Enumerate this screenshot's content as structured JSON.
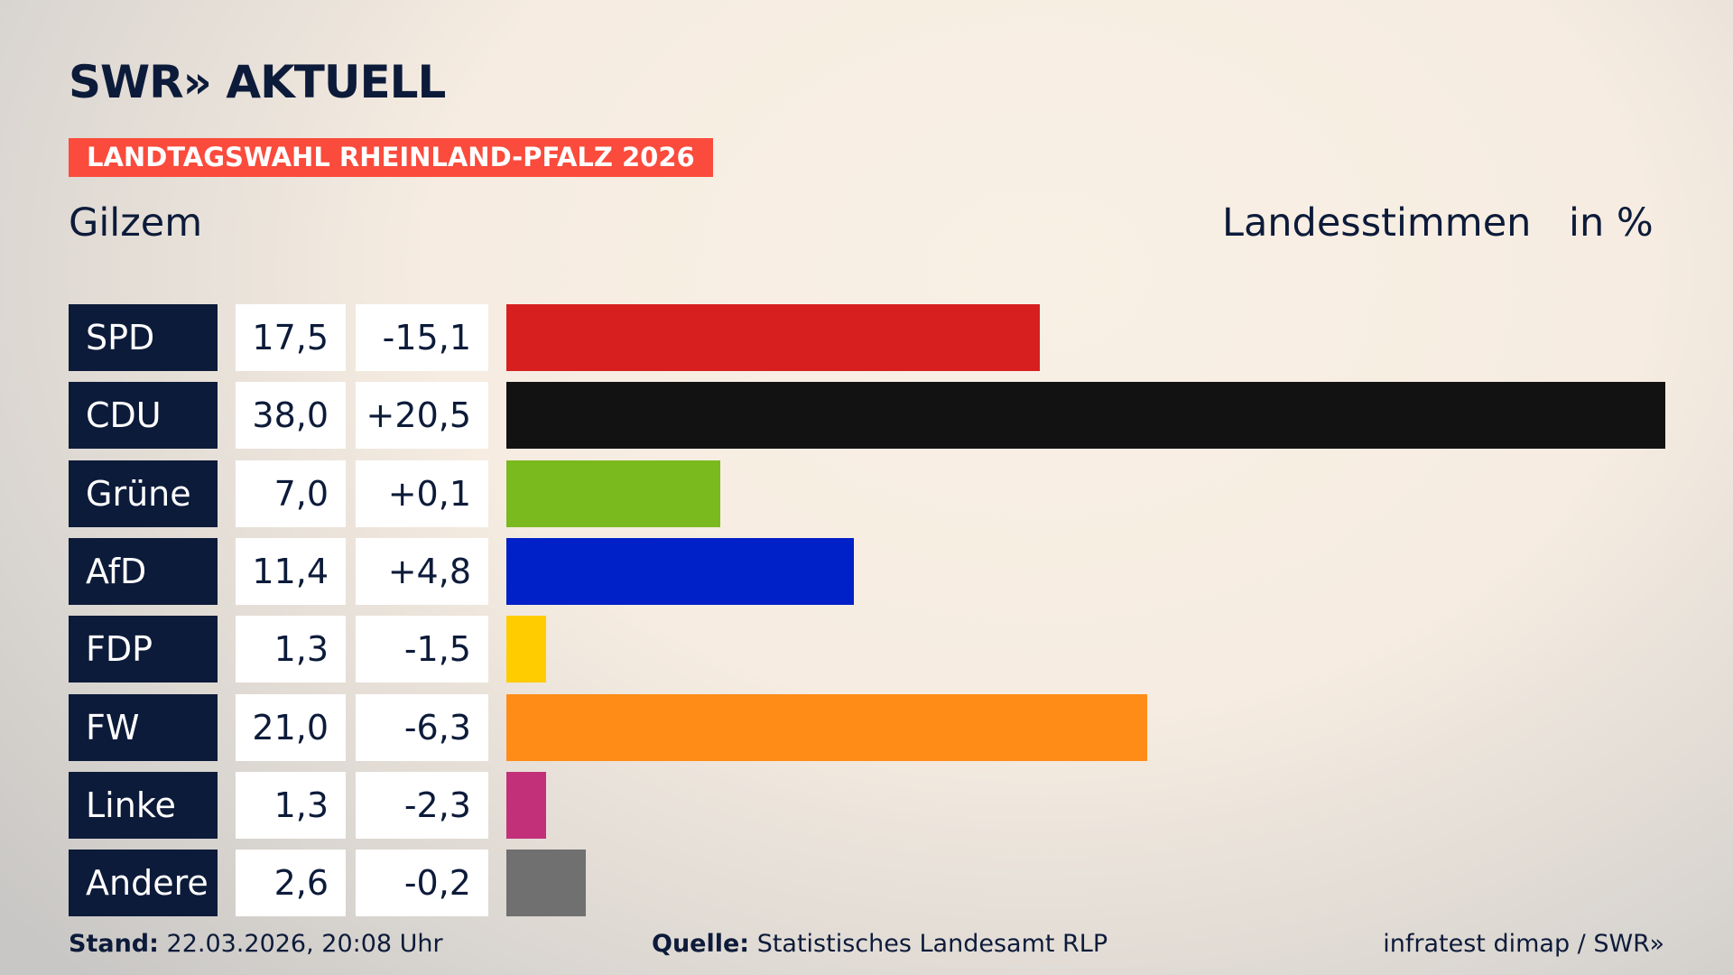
{
  "chart_data": {
    "type": "bar",
    "brand": "SWR» AKTUELL",
    "title": "LANDTAGSWAHL RHEINLAND-PFALZ 2026",
    "subtitle": "Gilzem",
    "measure": "Landesstimmen",
    "unit": "in %",
    "categories": [
      "SPD",
      "CDU",
      "Grüne",
      "AfD",
      "FDP",
      "FW",
      "Linke",
      "Andere"
    ],
    "values": [
      17.5,
      38.0,
      7.0,
      11.4,
      1.3,
      21.0,
      1.3,
      2.6
    ],
    "value_labels": [
      "17,5",
      "38,0",
      "7,0",
      "11,4",
      "1,3",
      "21,0",
      "1,3",
      "2,6"
    ],
    "changes": [
      -15.1,
      20.5,
      0.1,
      4.8,
      -1.5,
      -6.3,
      -2.3,
      -0.2
    ],
    "change_labels": [
      "-15,1",
      "+20,5",
      "+0,1",
      "+4,8",
      "-1,5",
      "-6,3",
      "-2,3",
      "-0,2"
    ],
    "colors": [
      "#d71f1f",
      "#121212",
      "#7aba1e",
      "#0020c8",
      "#ffcc00",
      "#ff8c17",
      "#c2307a",
      "#707070"
    ],
    "footer": {
      "stand_label": "Stand:",
      "stand": "22.03.2026, 20:08 Uhr",
      "source_label": "Quelle:",
      "source": "Statistisches Landesamt RLP",
      "credit": "infratest dimap / SWR»"
    }
  }
}
